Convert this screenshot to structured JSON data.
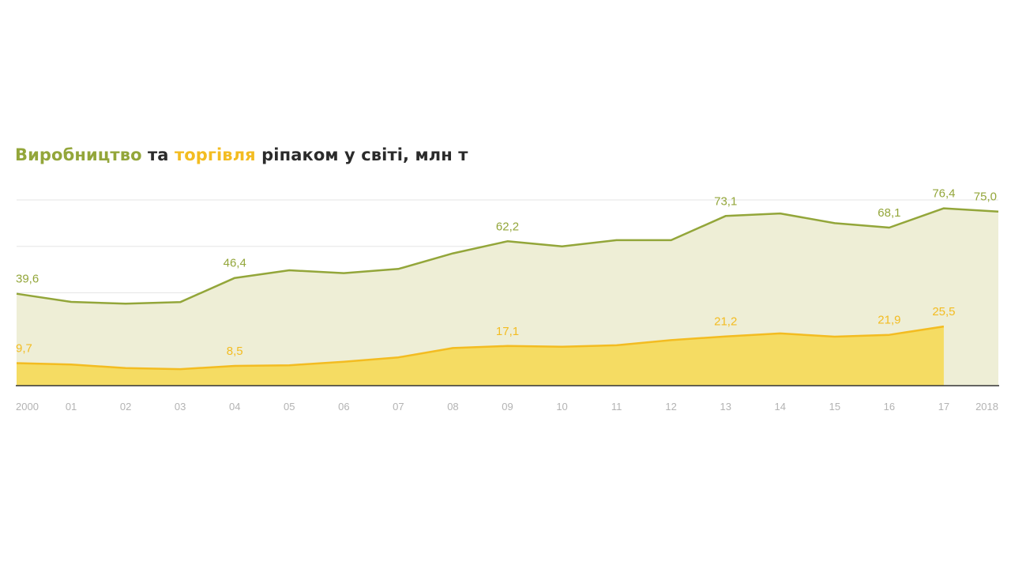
{
  "title": {
    "part1": "Виробництво",
    "part2": " та ",
    "part3": "торгівля",
    "part4": " ріпаком у світі, млн т"
  },
  "colors": {
    "production": "#93a63a",
    "production_fill": "#eeeed6",
    "trade": "#f3bc21",
    "trade_fill": "#f5dc63",
    "title_text": "#2b2b2b",
    "axis": "#333333",
    "grid": "#e6e6e6",
    "tick": "#b3b3b3"
  },
  "chart_data": {
    "type": "area",
    "categories": [
      "2000",
      "01",
      "02",
      "03",
      "04",
      "05",
      "06",
      "07",
      "08",
      "09",
      "10",
      "11",
      "12",
      "13",
      "14",
      "15",
      "16",
      "17",
      "2018"
    ],
    "ylim": [
      0,
      80
    ],
    "grid": true,
    "series": [
      {
        "name": "Виробництво",
        "values": [
          39.6,
          36.1,
          35.3,
          36.0,
          46.4,
          49.7,
          48.5,
          50.3,
          57.0,
          62.2,
          60.0,
          62.7,
          62.7,
          73.1,
          74.2,
          70.0,
          68.1,
          76.4,
          75.0
        ]
      },
      {
        "name": "торгівля",
        "values": [
          9.7,
          9.1,
          7.6,
          7.1,
          8.5,
          8.8,
          10.3,
          12.2,
          16.2,
          17.1,
          16.8,
          17.4,
          19.6,
          21.2,
          22.5,
          21.1,
          21.9,
          25.5,
          null
        ]
      }
    ],
    "data_labels": [
      {
        "series": 0,
        "index": 0,
        "text": "39,6"
      },
      {
        "series": 0,
        "index": 4,
        "text": "46,4"
      },
      {
        "series": 0,
        "index": 9,
        "text": "62,2"
      },
      {
        "series": 0,
        "index": 13,
        "text": "73,1"
      },
      {
        "series": 0,
        "index": 16,
        "text": "68,1"
      },
      {
        "series": 0,
        "index": 17,
        "text": "76,4"
      },
      {
        "series": 0,
        "index": 18,
        "text": "75,0"
      },
      {
        "series": 1,
        "index": 0,
        "text": "9,7"
      },
      {
        "series": 1,
        "index": 4,
        "text": "8,5"
      },
      {
        "series": 1,
        "index": 9,
        "text": "17,1"
      },
      {
        "series": 1,
        "index": 13,
        "text": "21,2"
      },
      {
        "series": 1,
        "index": 16,
        "text": "21,9"
      },
      {
        "series": 1,
        "index": 17,
        "text": "25,5"
      }
    ]
  }
}
